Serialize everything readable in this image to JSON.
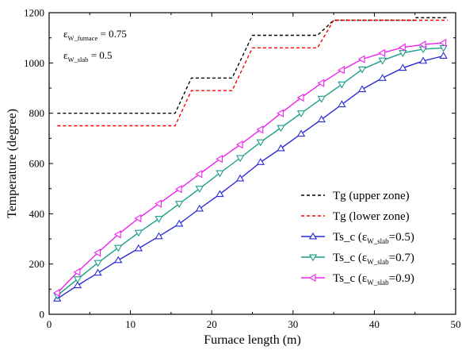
{
  "chart_data": {
    "type": "line",
    "xlabel": "Furnace length (m)",
    "ylabel": "Temperature (degree)",
    "xlim": [
      0,
      50
    ],
    "ylim": [
      0,
      1200
    ],
    "xticks": [
      0,
      10,
      20,
      30,
      40,
      50
    ],
    "yticks": [
      0,
      200,
      400,
      600,
      800,
      1000,
      1200
    ],
    "grid": false,
    "legend_position": "bottom-right",
    "annotations": [
      {
        "main": "ε",
        "sub": "W_furnace",
        "rest": " = 0.75"
      },
      {
        "main": "ε",
        "sub": "W_slab",
        "rest": " = 0.5"
      }
    ],
    "series": [
      {
        "name": "Tg (upper zone)",
        "legend": {
          "text": "Tg (upper zone)"
        },
        "color": "#000000",
        "style": "dashed",
        "marker": "none",
        "x": [
          1,
          15.5,
          15.5,
          17.5,
          17.5,
          22.5,
          22.5,
          25,
          25,
          33,
          33,
          35,
          35,
          45,
          45,
          49
        ],
        "y": [
          800,
          800,
          800,
          940,
          940,
          940,
          940,
          1110,
          1110,
          1110,
          1110,
          1170,
          1170,
          1170,
          1180,
          1180
        ]
      },
      {
        "name": "Tg (lower zone)",
        "legend": {
          "text": "Tg (lower zone)"
        },
        "color": "#ff0000",
        "style": "dashed",
        "marker": "none",
        "x": [
          1,
          15.5,
          15.5,
          17.5,
          17.5,
          22.5,
          22.5,
          25,
          25,
          33,
          33,
          35,
          35,
          49
        ],
        "y": [
          750,
          750,
          750,
          890,
          890,
          890,
          890,
          1060,
          1060,
          1060,
          1060,
          1170,
          1170,
          1170
        ]
      },
      {
        "name": "Ts_c (εW_slab=0.5)",
        "legend": {
          "pre": "Ts_c (ε",
          "sub": "W_slab",
          "post": "=0.5)"
        },
        "color": "#2b2bd8",
        "style": "solid",
        "marker": "triangle-up",
        "x": [
          1,
          3.5,
          6,
          8.5,
          11,
          13.5,
          16,
          18.5,
          21,
          23.5,
          26,
          28.5,
          31,
          33.5,
          36,
          38.5,
          41,
          43.5,
          46,
          48.5
        ],
        "y": [
          62,
          115,
          165,
          215,
          262,
          310,
          360,
          420,
          478,
          540,
          605,
          660,
          718,
          775,
          835,
          895,
          940,
          980,
          1008,
          1028
        ]
      },
      {
        "name": "Ts_c (εW_slab=0.7)",
        "legend": {
          "pre": "Ts_c (ε",
          "sub": "W_slab",
          "post": "=0.7)"
        },
        "color": "#1a9e88",
        "style": "solid",
        "marker": "triangle-down",
        "x": [
          1,
          3.5,
          6,
          8.5,
          11,
          13.5,
          16,
          18.5,
          21,
          23.5,
          26,
          28.5,
          31,
          33.5,
          36,
          38.5,
          41,
          43.5,
          46,
          48.5
        ],
        "y": [
          75,
          140,
          205,
          265,
          325,
          380,
          440,
          500,
          562,
          622,
          685,
          742,
          800,
          858,
          915,
          975,
          1010,
          1040,
          1055,
          1060
        ]
      },
      {
        "name": "Ts_c (εW_slab=0.9)",
        "legend": {
          "pre": "Ts_c (ε",
          "sub": "W_slab",
          "post": "=0.9)"
        },
        "color": "#ee22ee",
        "style": "solid",
        "marker": "triangle-left",
        "x": [
          1,
          3.5,
          6,
          8.5,
          11,
          13.5,
          16,
          18.5,
          21,
          23.5,
          26,
          28.5,
          31,
          33.5,
          36,
          38.5,
          41,
          43.5,
          46,
          48.5
        ],
        "y": [
          85,
          168,
          245,
          318,
          382,
          440,
          498,
          558,
          618,
          675,
          735,
          800,
          862,
          920,
          972,
          1015,
          1040,
          1062,
          1073,
          1080
        ]
      }
    ]
  }
}
